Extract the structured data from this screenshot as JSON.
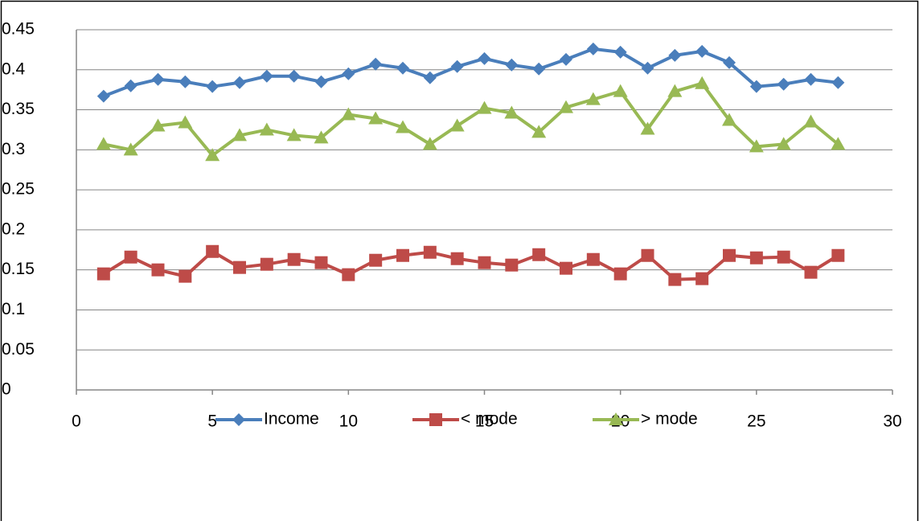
{
  "chart_data": {
    "type": "line",
    "x": [
      1,
      2,
      3,
      4,
      5,
      6,
      7,
      8,
      9,
      10,
      11,
      12,
      13,
      14,
      15,
      16,
      17,
      18,
      19,
      20,
      21,
      22,
      23,
      24,
      25,
      26,
      27,
      28
    ],
    "series": [
      {
        "name": "Income",
        "color": "#4a7ebb",
        "marker": "diamond",
        "values": [
          0.367,
          0.38,
          0.388,
          0.385,
          0.379,
          0.384,
          0.392,
          0.392,
          0.385,
          0.395,
          0.407,
          0.402,
          0.39,
          0.404,
          0.414,
          0.406,
          0.401,
          0.413,
          0.426,
          0.422,
          0.402,
          0.418,
          0.423,
          0.409,
          0.379,
          0.382,
          0.388,
          0.384
        ]
      },
      {
        "name": "< mode",
        "color": "#be4b48",
        "marker": "square",
        "values": [
          0.145,
          0.166,
          0.15,
          0.142,
          0.173,
          0.153,
          0.157,
          0.163,
          0.159,
          0.144,
          0.162,
          0.168,
          0.172,
          0.164,
          0.159,
          0.156,
          0.169,
          0.152,
          0.163,
          0.145,
          0.168,
          0.138,
          0.139,
          0.168,
          0.165,
          0.166,
          0.147,
          0.168
        ]
      },
      {
        "name": "> mode",
        "color": "#98b954",
        "marker": "triangle",
        "values": [
          0.307,
          0.3,
          0.33,
          0.334,
          0.293,
          0.318,
          0.325,
          0.318,
          0.315,
          0.344,
          0.339,
          0.328,
          0.307,
          0.33,
          0.352,
          0.346,
          0.322,
          0.353,
          0.363,
          0.373,
          0.326,
          0.373,
          0.383,
          0.337,
          0.304,
          0.307,
          0.335,
          0.307
        ]
      }
    ],
    "xlim": [
      0,
      30
    ],
    "xticks": [
      0,
      5,
      10,
      15,
      20,
      25,
      30
    ],
    "ylim": [
      0,
      0.45
    ],
    "yticks": [
      0,
      0.05,
      0.1,
      0.15,
      0.2,
      0.25,
      0.3,
      0.35,
      0.4,
      0.45
    ],
    "grid": true,
    "legend": "bottom"
  }
}
